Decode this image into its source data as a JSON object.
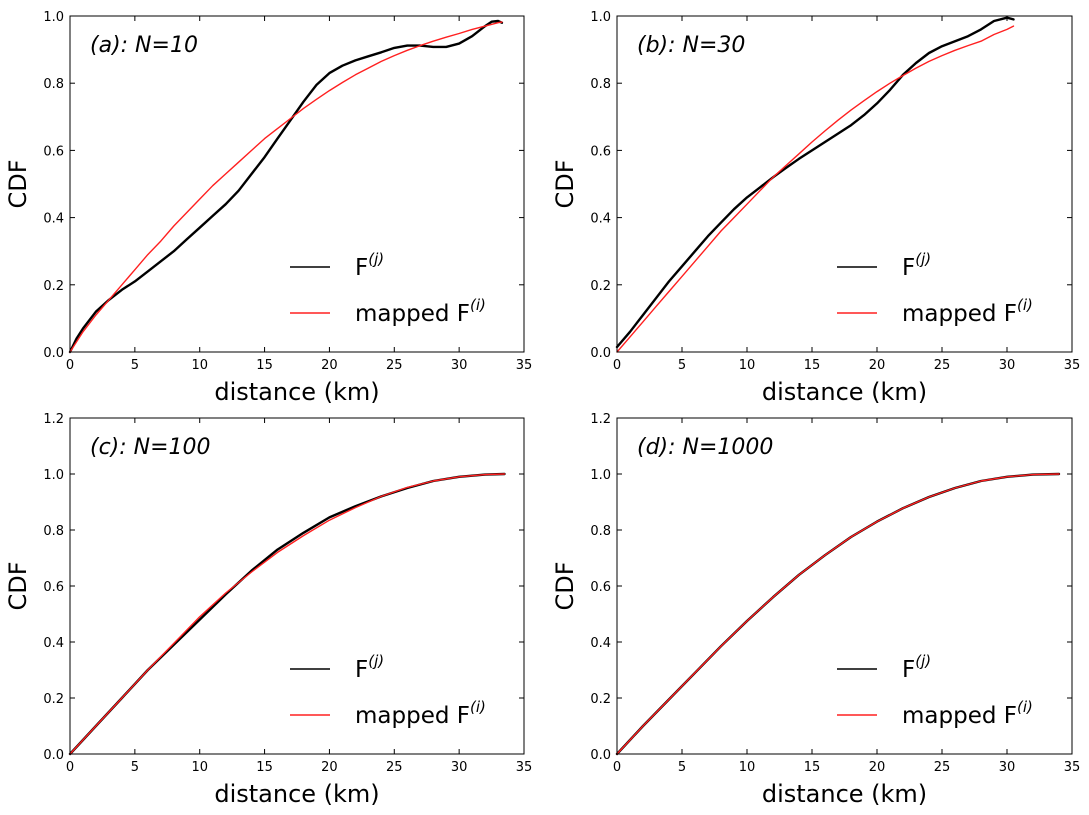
{
  "chart_data": [
    {
      "type": "line",
      "panel_label": "(a):  N=10",
      "xlabel": "distance (km)",
      "ylabel": "CDF",
      "xlim": [
        0,
        35
      ],
      "ylim": [
        0,
        1.0
      ],
      "xticks": [
        "0",
        "5",
        "10",
        "15",
        "20",
        "25",
        "30",
        "35"
      ],
      "yticks": [
        "0.0",
        "0.2",
        "0.4",
        "0.6",
        "0.8",
        "1.0"
      ],
      "legend": {
        "placement": "lower-right",
        "entries": [
          {
            "base": "F",
            "sup": "(j)",
            "color": "#000000"
          },
          {
            "base": "mapped F",
            "sup": "(i)",
            "color": "#ff2020"
          }
        ]
      },
      "series": [
        {
          "color": "#000000",
          "x": [
            0,
            0.5,
            1,
            2,
            3,
            4,
            5,
            6,
            7,
            8,
            9,
            10,
            11,
            12,
            13,
            14,
            15,
            16,
            17,
            18,
            19,
            20,
            21,
            22,
            23,
            24,
            25,
            26,
            27,
            28,
            29,
            30,
            31,
            32,
            32.5,
            33,
            33.3
          ],
          "y": [
            0,
            0.04,
            0.07,
            0.12,
            0.155,
            0.185,
            0.21,
            0.24,
            0.27,
            0.3,
            0.335,
            0.37,
            0.405,
            0.44,
            0.48,
            0.53,
            0.58,
            0.635,
            0.69,
            0.745,
            0.795,
            0.83,
            0.852,
            0.868,
            0.88,
            0.892,
            0.905,
            0.912,
            0.912,
            0.908,
            0.908,
            0.918,
            0.94,
            0.97,
            0.983,
            0.985,
            0.98
          ]
        },
        {
          "color": "#ff2020",
          "x": [
            0,
            1,
            2,
            3,
            4,
            5,
            6,
            7,
            8,
            9,
            10,
            11,
            12,
            13,
            14,
            15,
            16,
            17,
            18,
            19,
            20,
            21,
            22,
            23,
            24,
            25,
            26,
            27,
            28,
            29,
            30,
            31,
            32,
            33,
            33.3
          ],
          "y": [
            0,
            0.06,
            0.11,
            0.155,
            0.2,
            0.245,
            0.29,
            0.33,
            0.375,
            0.415,
            0.455,
            0.495,
            0.53,
            0.565,
            0.6,
            0.635,
            0.665,
            0.695,
            0.725,
            0.752,
            0.778,
            0.802,
            0.825,
            0.845,
            0.865,
            0.882,
            0.898,
            0.912,
            0.925,
            0.937,
            0.948,
            0.96,
            0.97,
            0.98,
            0.982
          ]
        }
      ]
    },
    {
      "type": "line",
      "panel_label": "(b):  N=30",
      "xlabel": "distance (km)",
      "ylabel": "CDF",
      "xlim": [
        0,
        35
      ],
      "ylim": [
        0,
        1.0
      ],
      "xticks": [
        "0",
        "5",
        "10",
        "15",
        "20",
        "25",
        "30",
        "35"
      ],
      "yticks": [
        "0.0",
        "0.2",
        "0.4",
        "0.6",
        "0.8",
        "1.0"
      ],
      "legend": {
        "placement": "lower-right",
        "entries": [
          {
            "base": "F",
            "sup": "(j)",
            "color": "#000000"
          },
          {
            "base": "mapped F",
            "sup": "(i)",
            "color": "#ff2020"
          }
        ]
      },
      "series": [
        {
          "color": "#000000",
          "x": [
            0,
            1,
            2,
            3,
            4,
            5,
            6,
            7,
            8,
            9,
            10,
            11,
            12,
            13,
            14,
            15,
            16,
            17,
            18,
            19,
            20,
            21,
            22,
            23,
            24,
            25,
            26,
            27,
            28,
            29,
            30,
            30.5
          ],
          "y": [
            0.015,
            0.06,
            0.11,
            0.16,
            0.21,
            0.255,
            0.3,
            0.345,
            0.385,
            0.425,
            0.46,
            0.49,
            0.52,
            0.548,
            0.575,
            0.6,
            0.625,
            0.65,
            0.675,
            0.705,
            0.74,
            0.78,
            0.825,
            0.86,
            0.89,
            0.91,
            0.925,
            0.94,
            0.96,
            0.985,
            0.995,
            0.99
          ]
        },
        {
          "color": "#ff2020",
          "x": [
            0,
            1,
            2,
            3,
            4,
            5,
            6,
            7,
            8,
            9,
            10,
            11,
            12,
            13,
            14,
            15,
            16,
            17,
            18,
            19,
            20,
            21,
            22,
            23,
            24,
            25,
            26,
            27,
            28,
            29,
            30,
            30.5
          ],
          "y": [
            0,
            0.045,
            0.09,
            0.135,
            0.18,
            0.225,
            0.27,
            0.315,
            0.36,
            0.4,
            0.44,
            0.48,
            0.52,
            0.555,
            0.59,
            0.625,
            0.658,
            0.69,
            0.72,
            0.748,
            0.775,
            0.8,
            0.823,
            0.845,
            0.865,
            0.882,
            0.898,
            0.912,
            0.925,
            0.945,
            0.96,
            0.97
          ]
        }
      ]
    },
    {
      "type": "line",
      "panel_label": "(c):  N=100",
      "xlabel": "distance (km)",
      "ylabel": "CDF",
      "xlim": [
        0,
        35
      ],
      "ylim": [
        0,
        1.2
      ],
      "xticks": [
        "0",
        "5",
        "10",
        "15",
        "20",
        "25",
        "30",
        "35"
      ],
      "yticks": [
        "0.0",
        "0.2",
        "0.4",
        "0.6",
        "0.8",
        "1.0",
        "1.2"
      ],
      "legend": {
        "placement": "lower-right",
        "entries": [
          {
            "base": "F",
            "sup": "(j)",
            "color": "#000000"
          },
          {
            "base": "mapped F",
            "sup": "(i)",
            "color": "#ff2020"
          }
        ]
      },
      "series": [
        {
          "color": "#000000",
          "x": [
            0,
            2,
            4,
            6,
            8,
            10,
            12,
            14,
            16,
            18,
            20,
            22,
            24,
            26,
            28,
            30,
            32,
            33.5
          ],
          "y": [
            0,
            0.1,
            0.2,
            0.3,
            0.39,
            0.48,
            0.57,
            0.655,
            0.73,
            0.79,
            0.845,
            0.885,
            0.92,
            0.95,
            0.975,
            0.99,
            0.998,
            1.0
          ]
        },
        {
          "color": "#ff2020",
          "x": [
            0,
            2,
            4,
            6,
            8,
            10,
            12,
            14,
            16,
            18,
            20,
            22,
            24,
            26,
            28,
            30,
            32,
            33.5
          ],
          "y": [
            0,
            0.1,
            0.2,
            0.3,
            0.395,
            0.49,
            0.575,
            0.65,
            0.72,
            0.78,
            0.835,
            0.88,
            0.92,
            0.952,
            0.975,
            0.99,
            0.998,
            1.0
          ]
        }
      ]
    },
    {
      "type": "line",
      "panel_label": "(d):  N=1000",
      "xlabel": "distance (km)",
      "ylabel": "CDF",
      "xlim": [
        0,
        35
      ],
      "ylim": [
        0,
        1.2
      ],
      "xticks": [
        "0",
        "5",
        "10",
        "15",
        "20",
        "25",
        "30",
        "35"
      ],
      "yticks": [
        "0.0",
        "0.2",
        "0.4",
        "0.6",
        "0.8",
        "1.0",
        "1.2"
      ],
      "legend": {
        "placement": "lower-right",
        "entries": [
          {
            "base": "F",
            "sup": "(j)",
            "color": "#000000"
          },
          {
            "base": "mapped F",
            "sup": "(i)",
            "color": "#ff2020"
          }
        ]
      },
      "series": [
        {
          "color": "#000000",
          "x": [
            0,
            2,
            4,
            6,
            8,
            10,
            12,
            14,
            16,
            18,
            20,
            22,
            24,
            26,
            28,
            30,
            32,
            34
          ],
          "y": [
            0,
            0.1,
            0.195,
            0.29,
            0.385,
            0.475,
            0.56,
            0.64,
            0.71,
            0.775,
            0.83,
            0.878,
            0.918,
            0.95,
            0.975,
            0.99,
            0.998,
            1.0
          ]
        },
        {
          "color": "#ff2020",
          "x": [
            0,
            2,
            4,
            6,
            8,
            10,
            12,
            14,
            16,
            18,
            20,
            22,
            24,
            26,
            28,
            30,
            32,
            34
          ],
          "y": [
            0,
            0.1,
            0.195,
            0.29,
            0.385,
            0.475,
            0.56,
            0.64,
            0.71,
            0.775,
            0.83,
            0.878,
            0.918,
            0.95,
            0.975,
            0.99,
            0.998,
            1.0
          ]
        }
      ]
    }
  ]
}
